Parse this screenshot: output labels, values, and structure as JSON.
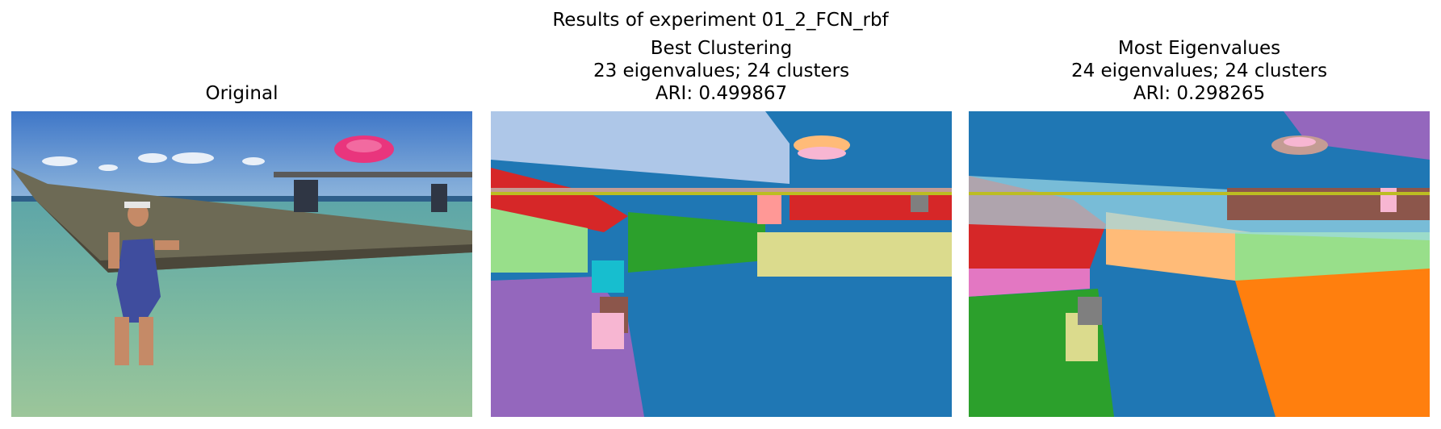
{
  "figure": {
    "suptitle": "Results of experiment 01_2_FCN_rbf",
    "panels": [
      {
        "title_lines": [
          "Original"
        ]
      },
      {
        "title_lines": [
          "Best Clustering",
          "23 eigenvalues; 24 clusters",
          "ARI: 0.499867"
        ]
      },
      {
        "title_lines": [
          "Most Eigenvalues",
          "24 eigenvalues; 24 clusters",
          "ARI: 0.298265"
        ]
      }
    ]
  },
  "palette": {
    "blue": "#1f77b4",
    "light_blue": "#aec7e8",
    "orange": "#ff7f0e",
    "light_orange": "#ffbb78",
    "green": "#2ca02c",
    "light_green": "#98df8a",
    "red": "#d62728",
    "pink": "#ff9896",
    "purple": "#9467bd",
    "light_purple": "#c5b0d5",
    "brown": "#8c564b",
    "rose": "#c49c94",
    "magenta": "#e377c2",
    "light_magenta": "#f7b6d2",
    "gray": "#7f7f7f",
    "light_gray": "#c7c7c7",
    "olive": "#bcbd22",
    "khaki": "#dbdb8d",
    "cyan": "#17becf",
    "light_cyan": "#9edae5"
  }
}
